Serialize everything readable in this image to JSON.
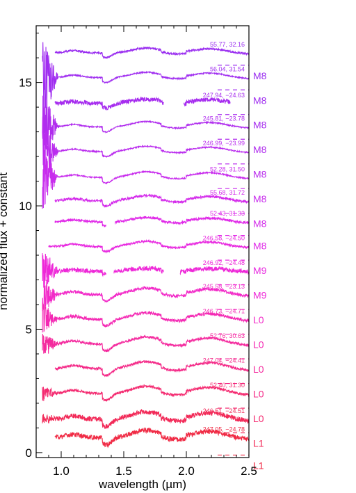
{
  "chart_data": {
    "type": "line",
    "xlabel": "wavelength (µm)",
    "ylabel": "normalized flux + constant",
    "xlim": [
      0.8,
      2.5
    ],
    "ylim": [
      -0.2,
      17.3
    ],
    "xticks": [
      {
        "value": 1.0,
        "label": "1.0"
      },
      {
        "value": 1.5,
        "label": "1.5"
      },
      {
        "value": 2.0,
        "label": "2.0"
      },
      {
        "value": 2.5,
        "label": "2.5"
      }
    ],
    "yticks": [
      {
        "value": 0,
        "label": "0"
      },
      {
        "value": 5,
        "label": "5"
      },
      {
        "value": 10,
        "label": "10"
      },
      {
        "value": 15,
        "label": "15"
      }
    ],
    "series": [
      {
        "coords": "55.77, 32.16",
        "type": "M8",
        "color": "#9a2ef0",
        "offset": 16.2,
        "baseline": 15.7,
        "start": 0.95,
        "gaps": [],
        "noise": 0.08,
        "amp": 0.55
      },
      {
        "coords": "56.04, 31.54",
        "type": "M8",
        "color": "#a02ef0",
        "offset": 15.2,
        "baseline": 14.7,
        "start": 0.85,
        "gaps": [],
        "noise": 0.05,
        "amp": 0.6
      },
      {
        "coords": "247.94, −24.63",
        "type": "M8",
        "color": "#a62cef",
        "offset": 14.15,
        "baseline": 13.7,
        "start": 0.95,
        "gaps": [
          [
            1.82,
            1.98
          ],
          [
            2.35,
            2.5
          ]
        ],
        "noise": 0.18,
        "amp": 0.5
      },
      {
        "coords": "245.81, −23.78",
        "type": "M8",
        "color": "#b02cee",
        "offset": 13.2,
        "baseline": 12.7,
        "start": 0.85,
        "gaps": [],
        "noise": 0.05,
        "amp": 0.6
      },
      {
        "coords": "246.99, −23.99",
        "type": "M8",
        "color": "#ba2cee",
        "offset": 12.2,
        "baseline": 11.7,
        "start": 0.85,
        "gaps": [],
        "noise": 0.05,
        "amp": 0.6
      },
      {
        "coords": "52.28, 31.50",
        "type": "M8",
        "color": "#c82ced",
        "offset": 11.15,
        "baseline": 10.7,
        "start": 0.85,
        "gaps": [],
        "noise": 0.05,
        "amp": 0.65
      },
      {
        "coords": "55.68, 31.72",
        "type": "M8",
        "color": "#d42ceb",
        "offset": 10.2,
        "baseline": 9.7,
        "start": 0.95,
        "gaps": [],
        "noise": 0.1,
        "amp": 0.6
      },
      {
        "coords": "52.43, 31.33",
        "type": "M8",
        "color": "#e02ae8",
        "offset": 9.35,
        "baseline": 8.8,
        "start": 0.95,
        "gaps": [
          [
            1.36,
            1.43
          ]
        ],
        "noise": 0.1,
        "amp": 0.5
      },
      {
        "coords": "246.58, −24.50",
        "type": "M9",
        "color": "#e82ae0",
        "offset": 8.35,
        "baseline": 7.8,
        "start": 0.9,
        "gaps": [],
        "noise": 0.08,
        "amp": 0.6
      },
      {
        "coords": "246.92, −24.48",
        "type": "M9",
        "color": "#ee28d8",
        "offset": 7.35,
        "baseline": 6.8,
        "start": 0.85,
        "gaps": [
          [
            1.36,
            1.42
          ],
          [
            1.82,
            1.95
          ]
        ],
        "noise": 0.18,
        "amp": 0.35
      },
      {
        "coords": "245.58, −23.13",
        "type": "L0",
        "color": "#f22ac8",
        "offset": 6.4,
        "baseline": 5.8,
        "start": 0.85,
        "gaps": [],
        "noise": 0.12,
        "amp": 0.75
      },
      {
        "coords": "246.73, −24.71",
        "type": "L0",
        "color": "#f42ab4",
        "offset": 5.4,
        "baseline": 4.8,
        "start": 0.85,
        "gaps": [],
        "noise": 0.12,
        "amp": 0.75
      },
      {
        "coords": "52.76, 30.63",
        "type": "L0",
        "color": "#f42a9e",
        "offset": 4.4,
        "baseline": 3.8,
        "start": 0.85,
        "gaps": [],
        "noise": 0.1,
        "amp": 0.8
      },
      {
        "coords": "247.04, −24.41",
        "type": "L0",
        "color": "#f42a88",
        "offset": 3.4,
        "baseline": 2.8,
        "start": 0.95,
        "gaps": [],
        "noise": 0.1,
        "amp": 0.8
      },
      {
        "coords": "52.40, 31.30",
        "type": "L0",
        "color": "#f42a70",
        "offset": 2.4,
        "baseline": 1.8,
        "start": 0.85,
        "gaps": [],
        "noise": 0.1,
        "amp": 0.8
      },
      {
        "coords": "246.51, −24.51",
        "type": "L1",
        "color": "#f22a58",
        "offset": 1.35,
        "baseline": 0.8,
        "start": 0.85,
        "gaps": [],
        "noise": 0.2,
        "amp": 0.85
      },
      {
        "coords": "247.05, −24.78",
        "type": "L1",
        "color": "#f02a44",
        "offset": 0.6,
        "baseline": -0.1,
        "start": 0.95,
        "gaps": [],
        "noise": 0.2,
        "amp": 0.85
      }
    ]
  }
}
